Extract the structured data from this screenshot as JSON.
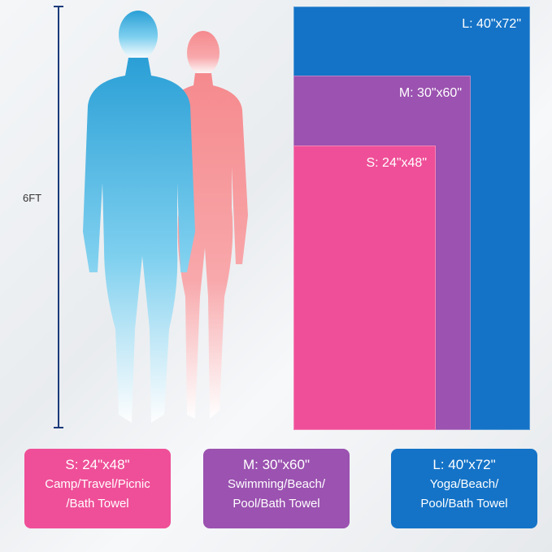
{
  "height_marker": {
    "label": "6FT"
  },
  "colors": {
    "small": "#ef4f98",
    "medium": "#9b52b0",
    "large": "#1473c7",
    "man": "#2a9fd6",
    "woman": "#f58a8e"
  },
  "towels": [
    {
      "size_label": "S: 24\"x48\"",
      "use_line1": "Camp/Travel/Picnic",
      "use_line2": "/Bath Towel"
    },
    {
      "size_label": "M: 30\"x60\"",
      "use_line1": "Swimming/Beach/",
      "use_line2": "Pool/Bath Towel"
    },
    {
      "size_label": "L: 40\"x72\"",
      "use_line1": "Yoga/Beach/",
      "use_line2": "Pool/Bath Towel"
    }
  ]
}
